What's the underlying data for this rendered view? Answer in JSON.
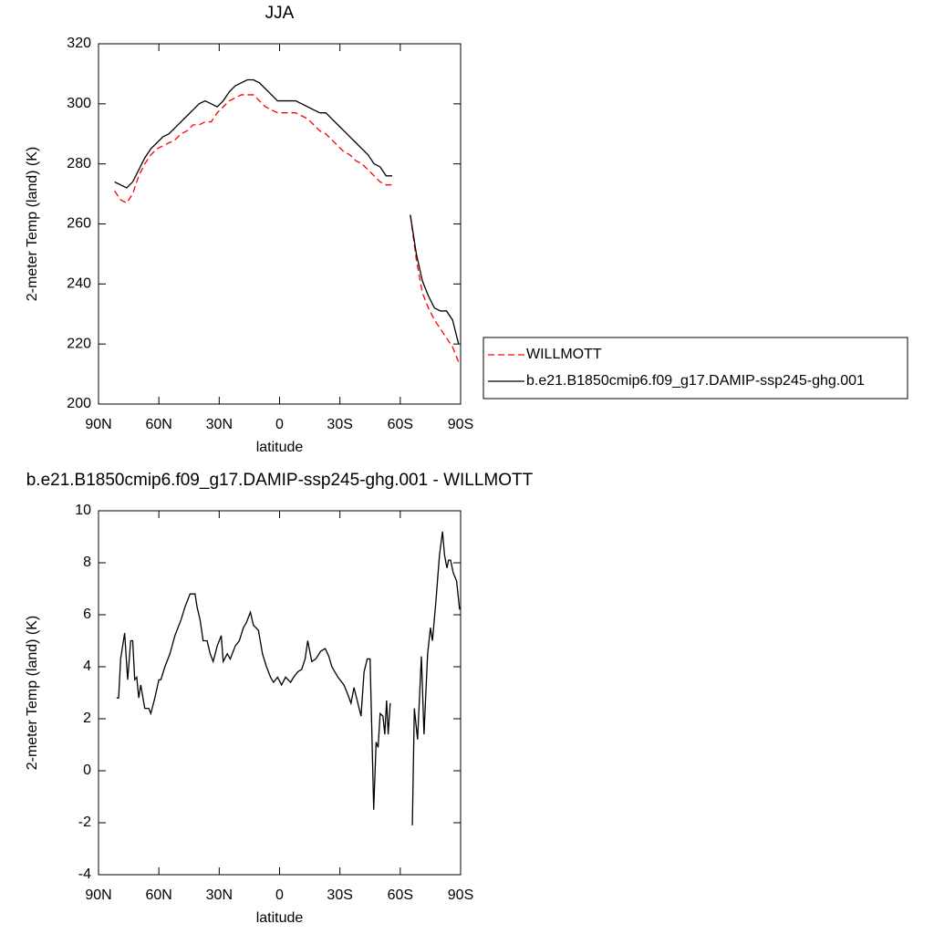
{
  "chart_data": [
    {
      "type": "line",
      "title": "JJA",
      "xlabel": "latitude",
      "ylabel": "2-meter Temp (land) (K)",
      "x": [
        82,
        79,
        76,
        73,
        70,
        67,
        64,
        61,
        58,
        55,
        52,
        49,
        46,
        43,
        40,
        37,
        34,
        31,
        28,
        25,
        22,
        19,
        16,
        13,
        10,
        7,
        4,
        1,
        -2,
        -5,
        -8,
        -11,
        -14,
        -17,
        -20,
        -23,
        -26,
        -29,
        -32,
        -35,
        -38,
        -41,
        -44,
        -47,
        -50,
        -53,
        -56,
        -60,
        -65,
        -68,
        -71,
        -74,
        -77,
        -80,
        -83,
        -86,
        -89
      ],
      "series": [
        {
          "name": "WILLMOTT",
          "color": "#ff0000",
          "line_style": "dashed",
          "values": [
            271,
            268,
            267,
            270,
            276,
            280,
            283,
            285,
            286,
            287,
            288,
            290,
            291,
            293,
            293,
            294,
            294,
            297,
            299,
            301,
            302,
            303,
            303,
            303,
            301,
            299,
            298,
            297,
            297,
            297,
            297,
            296,
            295,
            293,
            291,
            290,
            288,
            286,
            284,
            283,
            281,
            280,
            278,
            276,
            274,
            273,
            273,
            null,
            263,
            248,
            237,
            232,
            228,
            225,
            222,
            219,
            214
          ]
        },
        {
          "name": "b.e21.B1850cmip6.f09_g17.DAMIP-ssp245-ghg.001",
          "color": "#000000",
          "line_style": "solid",
          "values": [
            274,
            273,
            272,
            274,
            278,
            282,
            285,
            287,
            289,
            290,
            292,
            294,
            296,
            298,
            300,
            301,
            300,
            299,
            301,
            304,
            306,
            307,
            308,
            308,
            307,
            305,
            303,
            301,
            301,
            301,
            301,
            300,
            299,
            298,
            297,
            297,
            295,
            293,
            291,
            289,
            287,
            285,
            283,
            280,
            279,
            276,
            276,
            null,
            263,
            250,
            241,
            236,
            232,
            231,
            231,
            228,
            220
          ]
        }
      ],
      "xlim": [
        90,
        -90
      ],
      "xticks": [
        {
          "value": 90,
          "label": "90N"
        },
        {
          "value": 60,
          "label": "60N"
        },
        {
          "value": 30,
          "label": "30N"
        },
        0,
        {
          "value": -30,
          "label": "30S"
        },
        {
          "value": -60,
          "label": "60S"
        },
        {
          "value": -90,
          "label": "90S"
        }
      ],
      "ylim": [
        200,
        320
      ],
      "yticks": [
        200,
        220,
        240,
        260,
        280,
        300,
        320
      ],
      "legend": "right"
    },
    {
      "type": "line",
      "title": "b.e21.B1850cmip6.f09_g17.DAMIP-ssp245-ghg.001 - WILLMOTT",
      "xlabel": "latitude",
      "ylabel": "2-meter Temp (land) (K)",
      "x": [
        81,
        80,
        79,
        77,
        75.5,
        74,
        73,
        72,
        71,
        70,
        69,
        67,
        65,
        64,
        62,
        60,
        59,
        57,
        54.5,
        52,
        49,
        47,
        44.5,
        42,
        41,
        39.5,
        38,
        36,
        34.5,
        33,
        31,
        29,
        28,
        26,
        24.5,
        22,
        20,
        18,
        16.5,
        14.5,
        13,
        10.5,
        8.5,
        6.5,
        4.5,
        3,
        1,
        -1,
        -3,
        -5.5,
        -7,
        -9,
        -11,
        -12.7,
        -14,
        -16,
        -18,
        -20.5,
        -22.7,
        -24.5,
        -26,
        -29,
        -32,
        -33.6,
        -35.5,
        -37,
        -40.5,
        -42,
        -43.6,
        -45,
        -46.8,
        -48,
        -49,
        -50,
        -51.4,
        -52.3,
        -53.2,
        -54,
        -55,
        -60,
        -66,
        -67,
        -68.6,
        -70.5,
        -71.8,
        -73.6,
        -75,
        -76,
        -77.7,
        -79.5,
        -81,
        -82,
        -83.2,
        -84,
        -85,
        -86.4,
        -88,
        -89.5
      ],
      "series": [
        {
          "color": "#000000",
          "line_style": "solid",
          "values": [
            2.8,
            2.8,
            4.3,
            5.3,
            3.5,
            5.0,
            5.0,
            3.5,
            3.6,
            2.8,
            3.3,
            2.4,
            2.4,
            2.2,
            2.8,
            3.5,
            3.5,
            4.0,
            4.5,
            5.2,
            5.8,
            6.3,
            6.8,
            6.8,
            6.3,
            5.8,
            5.0,
            5.0,
            4.5,
            4.2,
            4.8,
            5.2,
            4.2,
            4.5,
            4.3,
            4.8,
            5.0,
            5.5,
            5.7,
            6.1,
            5.6,
            5.4,
            4.5,
            4.0,
            3.6,
            3.4,
            3.6,
            3.3,
            3.6,
            3.4,
            3.6,
            3.8,
            3.9,
            4.3,
            5.0,
            4.2,
            4.3,
            4.6,
            4.7,
            4.4,
            4.0,
            3.6,
            3.3,
            3.0,
            2.6,
            3.2,
            2.1,
            3.8,
            4.3,
            4.3,
            -1.5,
            1.1,
            0.9,
            2.2,
            2.1,
            1.4,
            2.7,
            1.4,
            2.6,
            null,
            -2.1,
            2.4,
            1.2,
            4.4,
            1.4,
            4.5,
            5.5,
            5.0,
            6.5,
            8.3,
            9.2,
            8.3,
            7.8,
            8.1,
            8.1,
            7.6,
            7.3,
            6.2
          ]
        }
      ],
      "xlim": [
        90,
        -90
      ],
      "xticks": [
        {
          "value": 90,
          "label": "90N"
        },
        {
          "value": 60,
          "label": "60N"
        },
        {
          "value": 30,
          "label": "30N"
        },
        0,
        {
          "value": -30,
          "label": "30S"
        },
        {
          "value": -60,
          "label": "60S"
        },
        {
          "value": -90,
          "label": "90S"
        }
      ],
      "ylim": [
        -4,
        10
      ],
      "yticks": [
        -4,
        -2,
        0,
        2,
        4,
        6,
        8,
        10
      ]
    }
  ]
}
